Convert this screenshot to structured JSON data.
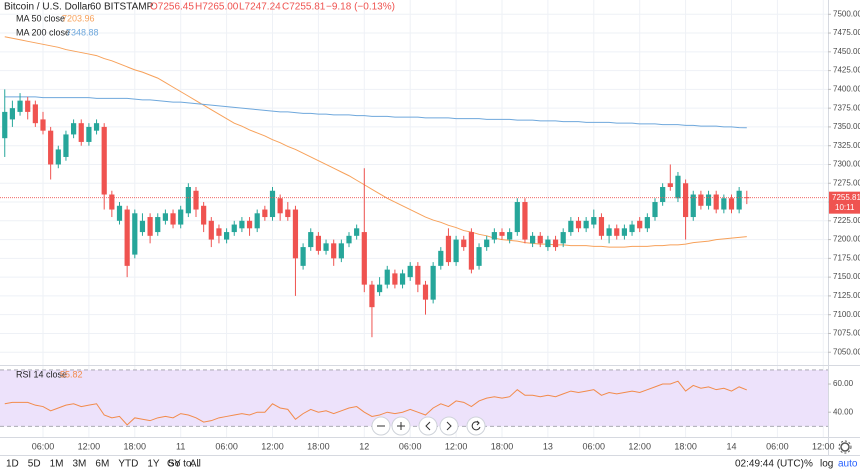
{
  "legend": {
    "symbol": "Bitcoin / U.S. Dollar",
    "interval": "60",
    "exchange": "BITSTAMP",
    "open": "O7256.45",
    "high": "H7265.00",
    "low": "L7247.24",
    "close": "C7255.81",
    "change": "−9.18 (−0.13%)"
  },
  "countdown": "10:11",
  "toolbar": {
    "ranges": [
      "1D",
      "5D",
      "1M",
      "3M",
      "6M",
      "YTD",
      "1Y",
      "5Y",
      "All"
    ],
    "goto": "Go to...",
    "clock": "02:49:44 (UTC)",
    "percent": "%",
    "log": "log",
    "auto": "auto"
  },
  "chart_data": [
    {
      "type": "candlestick",
      "up_color": "#26a69a",
      "down_color": "#ef5350",
      "grid": true,
      "categories": [
        null,
        null,
        null,
        null,
        null,
        "06:00",
        null,
        null,
        null,
        null,
        null,
        "12:00",
        null,
        null,
        null,
        null,
        null,
        "18:00",
        null,
        null,
        null,
        null,
        null,
        "11",
        null,
        null,
        null,
        null,
        null,
        "06:00",
        null,
        null,
        null,
        null,
        null,
        "12:00",
        null,
        null,
        null,
        null,
        null,
        "18:00",
        null,
        null,
        null,
        null,
        null,
        "12",
        null,
        null,
        null,
        null,
        null,
        "06:00",
        null,
        null,
        null,
        null,
        null,
        "12:00",
        null,
        null,
        null,
        null,
        null,
        "18:00",
        null,
        null,
        null,
        null,
        null,
        "13",
        null,
        null,
        null,
        null,
        null,
        "06:00",
        null,
        null,
        null,
        null,
        null,
        "12:00",
        null,
        null,
        null,
        null,
        null,
        "18:00",
        null,
        null,
        null,
        null,
        null,
        "14",
        null,
        null,
        null,
        null,
        null,
        "06:00",
        null,
        null,
        null,
        null,
        null,
        "12:00",
        null
      ],
      "open": [
        7335,
        7360,
        7370,
        7385,
        7380,
        7360,
        7345,
        7300,
        7310,
        7340,
        7355,
        7330,
        7345,
        7350,
        7260,
        7225,
        7240,
        7180,
        7210,
        7230,
        7210,
        7225,
        7235,
        7220,
        7235,
        7265,
        7245,
        7225,
        7215,
        7200,
        7210,
        7215,
        7225,
        7215,
        7240,
        7230,
        7255,
        7240,
        7240,
        7165,
        7190,
        7205,
        7185,
        7195,
        7175,
        7195,
        7205,
        7210,
        7140,
        7130,
        7140,
        7155,
        7140,
        7150,
        7165,
        7140,
        7120,
        7165,
        7205,
        7170,
        7200,
        7210,
        7165,
        7190,
        7200,
        7210,
        7200,
        7210,
        7250,
        7195,
        7205,
        7190,
        7200,
        7195,
        7210,
        7225,
        7215,
        7220,
        7230,
        7205,
        7215,
        7205,
        7210,
        7225,
        7215,
        7230,
        7250,
        7275,
        7255,
        7275,
        7230,
        7260,
        7245,
        7260,
        7240,
        7255,
        7240,
        7256.45,
        null,
        null,
        null,
        null,
        null,
        null,
        null,
        null,
        null,
        null,
        null
      ],
      "high": [
        7400,
        7385,
        7395,
        7390,
        7385,
        7370,
        7350,
        7325,
        7345,
        7360,
        7360,
        7355,
        7360,
        7355,
        7265,
        7250,
        7245,
        7240,
        7235,
        7235,
        7235,
        7240,
        7240,
        7245,
        7275,
        7270,
        7250,
        7230,
        7220,
        7215,
        7225,
        7230,
        7230,
        7240,
        7245,
        7270,
        7260,
        7250,
        7245,
        7195,
        7215,
        7210,
        7200,
        7200,
        7200,
        7210,
        7220,
        7295,
        7145,
        7150,
        7165,
        7160,
        7160,
        7170,
        7170,
        7145,
        7170,
        7190,
        7215,
        7205,
        7205,
        7215,
        7195,
        7205,
        7215,
        7215,
        7215,
        7255,
        7255,
        7210,
        7210,
        7205,
        7205,
        7215,
        7230,
        7230,
        7230,
        7240,
        7235,
        7220,
        7220,
        7220,
        7225,
        7230,
        7235,
        7255,
        7275,
        7300,
        7290,
        7280,
        7265,
        7265,
        7265,
        7265,
        7260,
        7260,
        7270,
        7265,
        null,
        null,
        null,
        null,
        null,
        null,
        null,
        null,
        null,
        null,
        null
      ],
      "low": [
        7310,
        7350,
        7365,
        7360,
        7350,
        7340,
        7280,
        7295,
        7305,
        7335,
        7325,
        7325,
        7340,
        7240,
        7230,
        7220,
        7150,
        7175,
        7205,
        7195,
        7205,
        7220,
        7215,
        7215,
        7230,
        7230,
        7210,
        7190,
        7195,
        7195,
        7205,
        7210,
        7205,
        7210,
        7225,
        7225,
        7225,
        7225,
        7125,
        7160,
        7185,
        7180,
        7180,
        7165,
        7170,
        7190,
        7200,
        7130,
        7070,
        7125,
        7135,
        7135,
        7135,
        7145,
        7130,
        7100,
        7115,
        7160,
        7165,
        7165,
        7185,
        7155,
        7160,
        7185,
        7195,
        7200,
        7195,
        7205,
        7195,
        7190,
        7190,
        7185,
        7185,
        7190,
        7205,
        7210,
        7210,
        7215,
        7200,
        7195,
        7200,
        7200,
        7205,
        7210,
        7210,
        7225,
        7245,
        7265,
        7250,
        7200,
        7225,
        7240,
        7240,
        7235,
        7235,
        7235,
        7235,
        7247.24,
        null,
        null,
        null,
        null,
        null,
        null,
        null,
        null,
        null,
        null,
        null
      ],
      "close": [
        7370,
        7375,
        7385,
        7370,
        7355,
        7345,
        7300,
        7320,
        7340,
        7355,
        7330,
        7350,
        7355,
        7260,
        7240,
        7245,
        7165,
        7235,
        7225,
        7205,
        7230,
        7235,
        7220,
        7240,
        7270,
        7240,
        7220,
        7200,
        7205,
        7210,
        7220,
        7225,
        7215,
        7235,
        7230,
        7265,
        7235,
        7230,
        7175,
        7190,
        7210,
        7185,
        7195,
        7175,
        7195,
        7205,
        7215,
        7140,
        7110,
        7140,
        7160,
        7140,
        7155,
        7165,
        7140,
        7120,
        7165,
        7185,
        7170,
        7200,
        7190,
        7160,
        7190,
        7200,
        7210,
        7205,
        7210,
        7250,
        7200,
        7205,
        7195,
        7200,
        7190,
        7210,
        7225,
        7215,
        7225,
        7230,
        7205,
        7215,
        7205,
        7215,
        7220,
        7215,
        7230,
        7250,
        7270,
        7270,
        7285,
        7230,
        7260,
        7245,
        7260,
        7240,
        7255,
        7240,
        7265,
        7255.81,
        null,
        null,
        null,
        null,
        null,
        null,
        null,
        null,
        null,
        null,
        null
      ],
      "series": [
        {
          "name": "MA 50 close",
          "color": "#f7a15a",
          "values": [
            7470,
            7468,
            7466,
            7464,
            7462,
            7460,
            7458,
            7456,
            7453,
            7451,
            7449,
            7447,
            7445,
            7441,
            7438,
            7434,
            7430,
            7426,
            7423,
            7419,
            7415,
            7409,
            7403,
            7397,
            7391,
            7385,
            7379,
            7373,
            7367,
            7361,
            7355,
            7351,
            7346,
            7342,
            7338,
            7333,
            7329,
            7324,
            7320,
            7315,
            7310,
            7305,
            7300,
            7295,
            7290,
            7285,
            7279,
            7273,
            7267,
            7261,
            7255,
            7250,
            7245,
            7240,
            7235,
            7230,
            7226,
            7223,
            7219,
            7216,
            7212,
            7210,
            7207,
            7205,
            7202,
            7200,
            7199,
            7198,
            7196,
            7195,
            7194,
            7194,
            7193,
            7193,
            7192,
            7192,
            7192,
            7191,
            7191,
            7190,
            7190,
            7190,
            7191,
            7191,
            7191,
            7192,
            7192,
            7193,
            7193,
            7194,
            7196,
            7197,
            7198,
            7200,
            7201,
            7202,
            7203,
            7203.96,
            null,
            null,
            null,
            null,
            null,
            null,
            null,
            null,
            null,
            null,
            null
          ]
        },
        {
          "name": "MA 200 close",
          "color": "#6fa8dc",
          "values": [
            7390,
            7390,
            7390,
            7390,
            7390,
            7389,
            7389,
            7389,
            7389,
            7389,
            7389,
            7389,
            7388,
            7388,
            7388,
            7388,
            7388,
            7387,
            7386,
            7386,
            7385,
            7384,
            7383,
            7383,
            7382,
            7381,
            7380,
            7379,
            7378,
            7377,
            7376,
            7375,
            7374,
            7373,
            7372,
            7371,
            7370,
            7370,
            7369,
            7368,
            7368,
            7367,
            7367,
            7366,
            7366,
            7366,
            7365,
            7365,
            7364,
            7364,
            7364,
            7363,
            7363,
            7363,
            7363,
            7362,
            7362,
            7362,
            7362,
            7361,
            7361,
            7361,
            7361,
            7360,
            7360,
            7360,
            7360,
            7359,
            7359,
            7359,
            7358,
            7358,
            7358,
            7357,
            7357,
            7357,
            7356,
            7356,
            7356,
            7356,
            7355,
            7355,
            7355,
            7354,
            7354,
            7354,
            7353,
            7353,
            7353,
            7352,
            7352,
            7351,
            7351,
            7351,
            7350,
            7350,
            7349,
            7348.88,
            null,
            null,
            null,
            null,
            null,
            null,
            null,
            null,
            null,
            null,
            null
          ]
        }
      ],
      "ylim": [
        7033,
        7519
      ],
      "yticks": [
        {
          "value": 7050,
          "label": "7050.00"
        },
        {
          "value": 7075,
          "label": "7075.00"
        },
        {
          "value": 7100,
          "label": "7100.00"
        },
        {
          "value": 7125,
          "label": "7125.00"
        },
        {
          "value": 7150,
          "label": "7150.00"
        },
        {
          "value": 7175,
          "label": "7175.00"
        },
        {
          "value": 7200,
          "label": "7200.00"
        },
        {
          "value": 7225,
          "label": "7225.00"
        },
        {
          "value": 7250,
          "label": "7250.00"
        },
        {
          "value": 7275,
          "label": "7275.00"
        },
        {
          "value": 7300,
          "label": "7300.00"
        },
        {
          "value": 7325,
          "label": "7325.00"
        },
        {
          "value": 7350,
          "label": "7350.00"
        },
        {
          "value": 7375,
          "label": "7375.00"
        },
        {
          "value": 7400,
          "label": "7400.00"
        },
        {
          "value": 7425,
          "label": "7425.00"
        },
        {
          "value": 7450,
          "label": "7450.00"
        },
        {
          "value": 7475,
          "label": "7475.00"
        },
        {
          "value": 7500,
          "label": "7500.00"
        }
      ]
    },
    {
      "type": "line",
      "name": "RSI 14 close",
      "color": "#f28b4b",
      "band_color": "#ede2fb",
      "bands": [
        30,
        70
      ],
      "values": [
        46,
        47,
        47,
        47,
        45,
        44,
        41,
        43,
        45,
        46,
        44,
        45,
        46,
        38,
        36,
        37,
        31,
        36,
        35,
        34,
        36,
        37,
        36,
        39,
        38,
        36,
        33,
        34,
        36,
        37,
        38,
        39,
        38,
        40,
        40,
        46,
        43,
        42,
        35,
        39,
        42,
        40,
        41,
        39,
        41,
        43,
        44,
        40,
        37,
        38,
        40,
        39,
        40,
        42,
        40,
        38,
        43,
        46,
        44,
        48,
        47,
        44,
        48,
        50,
        51,
        50,
        51,
        56,
        52,
        52,
        51,
        52,
        51,
        53,
        55,
        54,
        55,
        56,
        52,
        54,
        53,
        54,
        55,
        54,
        56,
        58,
        60,
        60,
        62,
        55,
        59,
        57,
        58,
        56,
        57,
        55,
        58,
        55.82,
        null,
        null,
        null,
        null,
        null,
        null,
        null,
        null,
        null,
        null,
        null
      ],
      "ylim": [
        22.4,
        72.8
      ],
      "yticks": [
        {
          "value": 40,
          "label": "40.00"
        },
        {
          "value": 60,
          "label": "60.00"
        }
      ]
    }
  ]
}
